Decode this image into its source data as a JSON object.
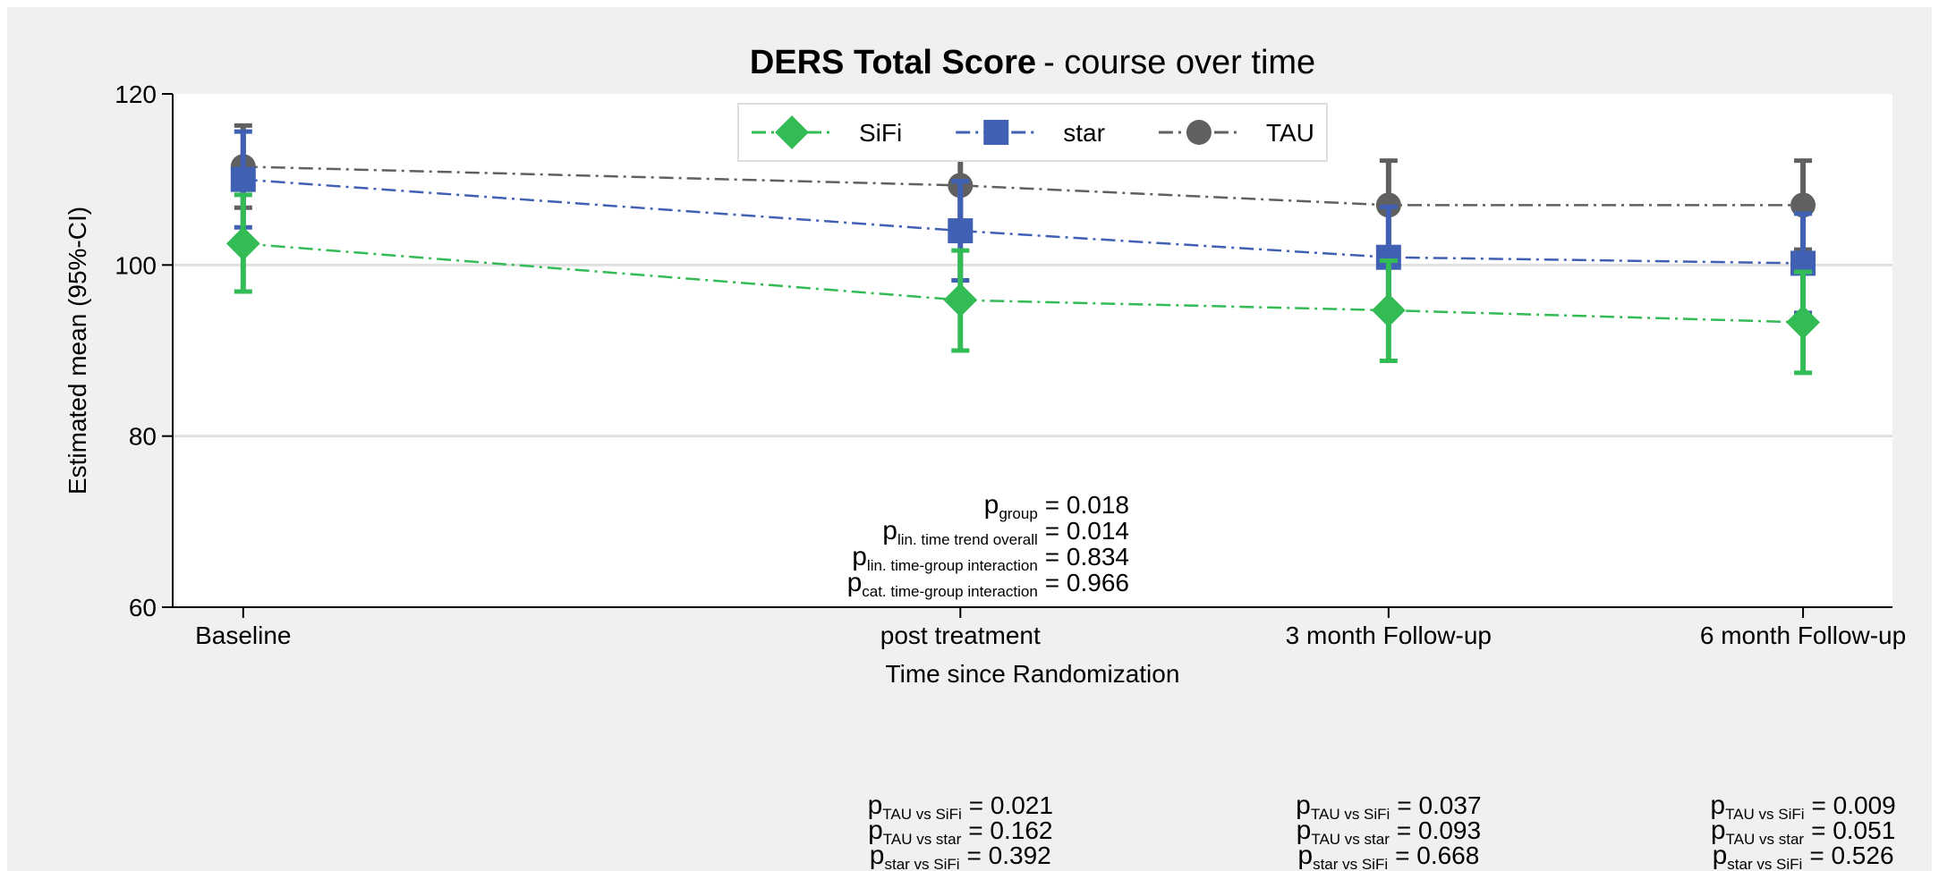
{
  "chart_data": {
    "type": "line",
    "title": "DERS Total Score",
    "subtitle": "- course over time",
    "x_label": "Time since Randomization",
    "y_label": "Estimated mean (95%-CI)",
    "categories": [
      "Baseline",
      "post treatment",
      "3 month Follow-up",
      "6 month Follow-up"
    ],
    "ylim": [
      60,
      120
    ],
    "yticks": [
      60,
      80,
      100,
      120
    ],
    "grid": true,
    "legend": "top-center",
    "series": [
      {
        "name": "TAU",
        "color": "#606060",
        "marker": "circle",
        "values": [
          111.5,
          109.3,
          107.0,
          107.0
        ],
        "lower": [
          106.7,
          104.0,
          102.0,
          101.8
        ],
        "upper": [
          116.3,
          114.5,
          112.2,
          112.2
        ]
      },
      {
        "name": "star",
        "color": "#4060b4",
        "marker": "square",
        "values": [
          110.0,
          104.0,
          100.9,
          100.2
        ],
        "lower": [
          104.4,
          98.2,
          95.0,
          94.4
        ],
        "upper": [
          115.6,
          109.8,
          106.8,
          106.0
        ]
      },
      {
        "name": "SiFi",
        "color": "#33bb55",
        "marker": "diamond",
        "values": [
          102.5,
          95.9,
          94.7,
          93.3
        ],
        "lower": [
          96.9,
          90.0,
          88.8,
          87.4
        ],
        "upper": [
          108.2,
          101.7,
          100.5,
          99.2
        ]
      }
    ],
    "legend_order": [
      "SiFi",
      "star",
      "TAU"
    ],
    "annotations": [
      {
        "symbol": "p",
        "subscript": "group",
        "value": "= 0.018"
      },
      {
        "symbol": "p",
        "subscript": "lin. time trend overall",
        "value": "= 0.014"
      },
      {
        "symbol": "p",
        "subscript": "lin. time-group interaction",
        "value": "= 0.834"
      },
      {
        "symbol": "p",
        "subscript": "cat. time-group interaction",
        "value": "= 0.966"
      }
    ],
    "comparisons": [
      null,
      [
        {
          "symbol": "p",
          "subscript": "TAU vs SiFi",
          "value": "= 0.021",
          "color": "#33bb55"
        },
        {
          "symbol": "p",
          "subscript": "TAU vs star",
          "value": "= 0.162",
          "color": "#4060b4"
        },
        {
          "symbol": "p",
          "subscript": "star vs SiFi",
          "value": "= 0.392",
          "color": "#000000"
        }
      ],
      [
        {
          "symbol": "p",
          "subscript": "TAU vs SiFi",
          "value": "= 0.037",
          "color": "#33bb55"
        },
        {
          "symbol": "p",
          "subscript": "TAU vs star",
          "value": "= 0.093",
          "color": "#4060b4"
        },
        {
          "symbol": "p",
          "subscript": "star vs SiFi",
          "value": "= 0.668",
          "color": "#000000"
        }
      ],
      [
        {
          "symbol": "p",
          "subscript": "TAU vs SiFi",
          "value": "= 0.009",
          "color": "#33bb55"
        },
        {
          "symbol": "p",
          "subscript": "TAU vs star",
          "value": "= 0.051",
          "color": "#4060b4"
        },
        {
          "symbol": "p",
          "subscript": "star vs SiFi",
          "value": "= 0.526",
          "color": "#000000"
        }
      ]
    ]
  }
}
